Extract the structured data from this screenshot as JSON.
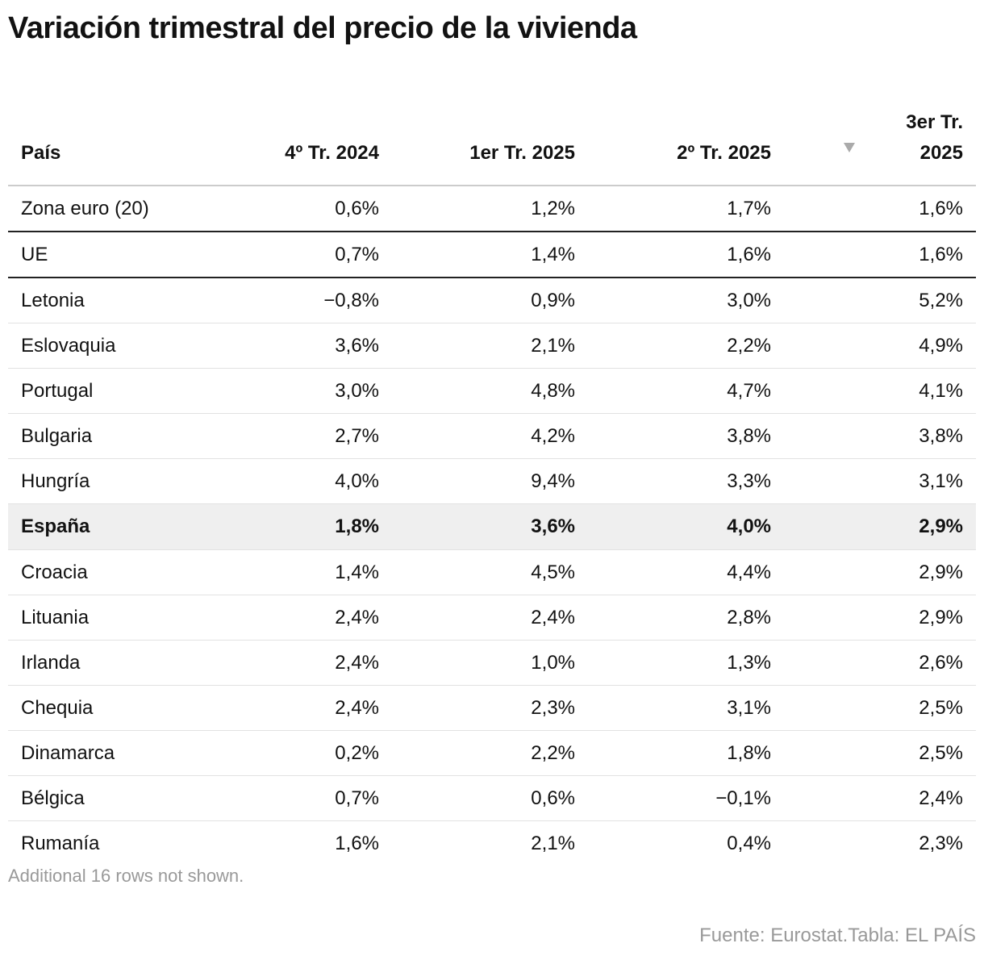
{
  "title": "Variación trimestral del precio de la vivienda",
  "table": {
    "headers": [
      "País",
      "4º Tr. 2024",
      "1er Tr. 2025",
      "2º Tr. 2025",
      "3er Tr. 2025"
    ],
    "rows": [
      [
        "Zona euro (20)",
        "0,6%",
        "1,2%",
        "1,7%",
        "1,6%"
      ],
      [
        "UE",
        "0,7%",
        "1,4%",
        "1,6%",
        "1,6%"
      ],
      [
        "Letonia",
        "−0,8%",
        "0,9%",
        "3,0%",
        "5,2%"
      ],
      [
        "Eslovaquia",
        "3,6%",
        "2,1%",
        "2,2%",
        "4,9%"
      ],
      [
        "Portugal",
        "3,0%",
        "4,8%",
        "4,7%",
        "4,1%"
      ],
      [
        "Bulgaria",
        "2,7%",
        "4,2%",
        "3,8%",
        "3,8%"
      ],
      [
        "Hungría",
        "4,0%",
        "9,4%",
        "3,3%",
        "3,1%"
      ],
      [
        "España",
        "1,8%",
        "3,6%",
        "4,0%",
        "2,9%"
      ],
      [
        "Croacia",
        "1,4%",
        "4,5%",
        "4,4%",
        "2,9%"
      ],
      [
        "Lituania",
        "2,4%",
        "2,4%",
        "2,8%",
        "2,9%"
      ],
      [
        "Irlanda",
        "2,4%",
        "1,0%",
        "1,3%",
        "2,6%"
      ],
      [
        "Chequia",
        "2,4%",
        "2,3%",
        "3,1%",
        "2,5%"
      ],
      [
        "Dinamarca",
        "0,2%",
        "2,2%",
        "1,8%",
        "2,5%"
      ],
      [
        "Bélgica",
        "0,7%",
        "0,6%",
        "−0,1%",
        "2,4%"
      ],
      [
        "Rumanía",
        "1,6%",
        "2,1%",
        "0,4%",
        "2,3%"
      ]
    ]
  },
  "note": "Additional 16 rows not shown.",
  "source": "Fuente: Eurostat.Tabla: EL PAÍS"
}
